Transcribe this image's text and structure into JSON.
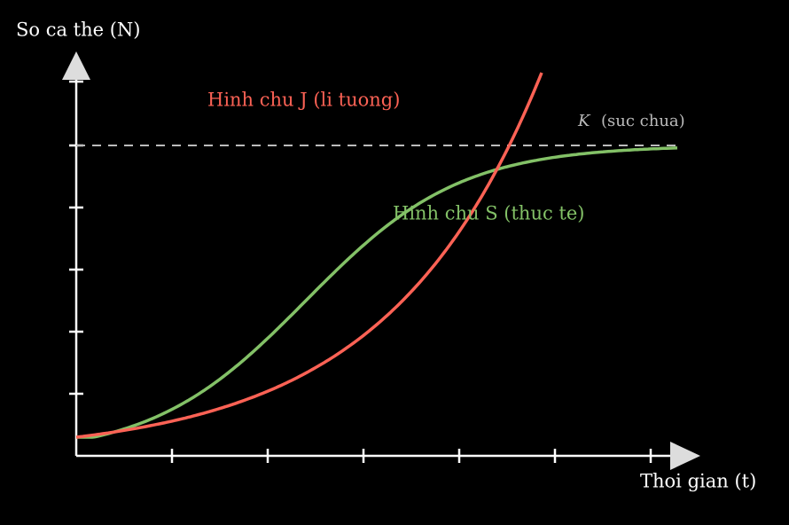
{
  "axes": {
    "y_label": "So ca the (N)",
    "x_label": "Thoi gian (t)"
  },
  "curves": {
    "j_label": "Hinh chu J (li tuong)",
    "s_label": "Hinh chu S (thuc te)"
  },
  "capacity": {
    "symbol": "K",
    "label": "(suc chua)"
  }
}
